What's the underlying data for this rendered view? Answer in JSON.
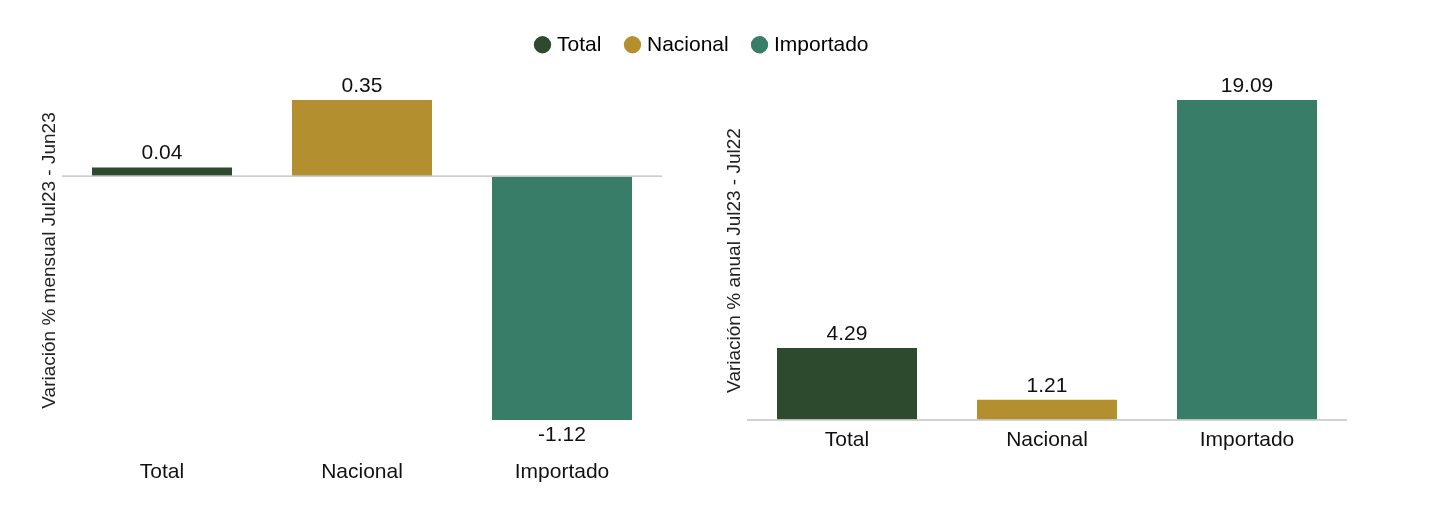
{
  "chart_data": [
    {
      "type": "bar",
      "ylabel": "Variación % mensual Jul23 - Jun23",
      "categories": [
        "Total",
        "Nacional",
        "Importado"
      ],
      "series": [
        {
          "name": "Total",
          "color": "#2d4a2f",
          "values": [
            0.04,
            null,
            null
          ]
        },
        {
          "name": "Nacional",
          "color": "#b38f30",
          "values": [
            null,
            0.35,
            null
          ]
        },
        {
          "name": "Importado",
          "color": "#377d68",
          "values": [
            null,
            null,
            -1.12
          ]
        }
      ],
      "data_labels": true,
      "legend": "top"
    },
    {
      "type": "bar",
      "ylabel": "Variación % anual Jul23 - Jul22",
      "categories": [
        "Total",
        "Nacional",
        "Importado"
      ],
      "series": [
        {
          "color": "#2d4a2f",
          "values": [
            4.29,
            null,
            null
          ]
        },
        {
          "color": "#b38f30",
          "values": [
            null,
            1.21,
            null
          ]
        },
        {
          "color": "#377d68",
          "values": [
            null,
            null,
            19.09
          ]
        }
      ],
      "data_labels": true
    }
  ]
}
